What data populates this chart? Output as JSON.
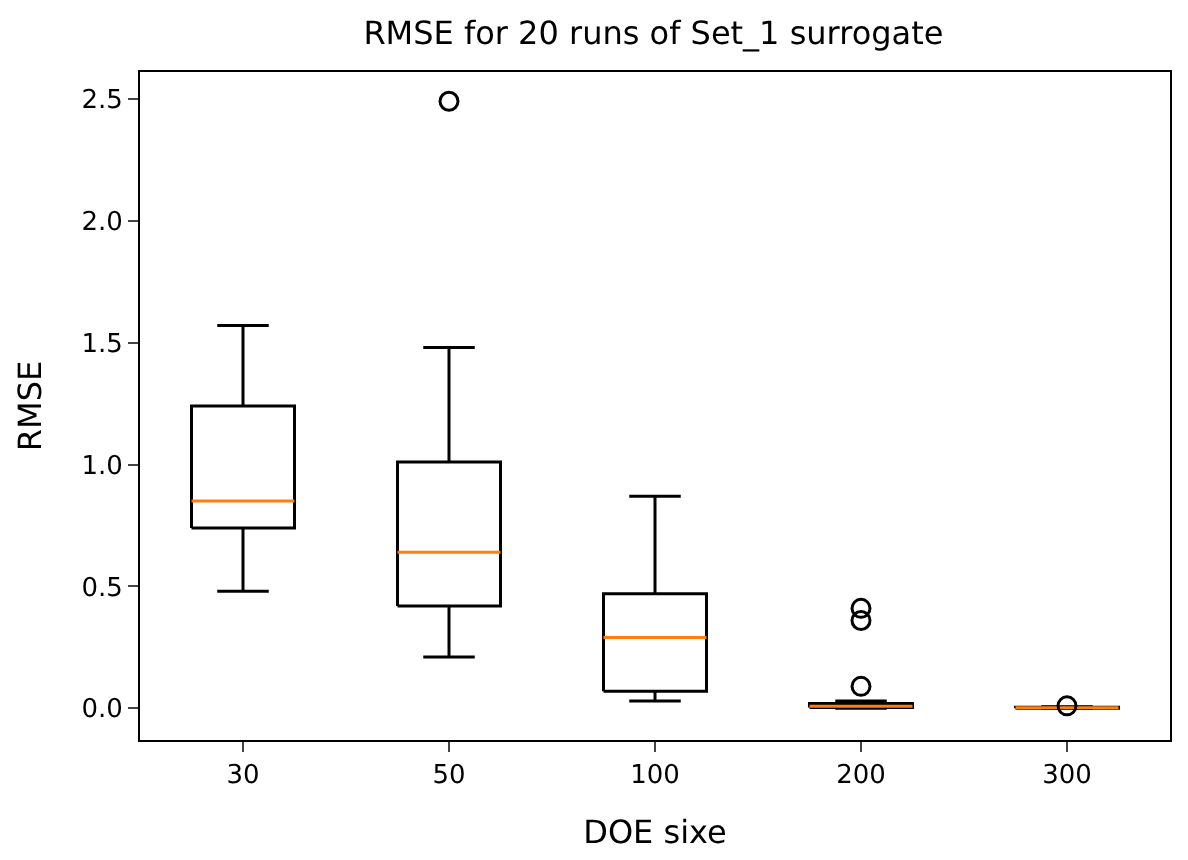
{
  "chart_data": {
    "type": "box",
    "title": "RMSE for 20 runs of Set_1 surrogate",
    "xlabel": "DOE sixe",
    "ylabel": "RMSE",
    "categories": [
      "30",
      "50",
      "100",
      "200",
      "300"
    ],
    "boxes": [
      {
        "low": 0.48,
        "q1": 0.74,
        "median": 0.85,
        "q3": 1.24,
        "high": 1.57
      },
      {
        "low": 0.21,
        "q1": 0.42,
        "median": 0.64,
        "q3": 1.01,
        "high": 1.48,
        "outliers": [
          2.49
        ]
      },
      {
        "low": 0.03,
        "q1": 0.07,
        "median": 0.29,
        "q3": 0.47,
        "high": 0.87
      },
      {
        "low": 0.0,
        "q1": 0.003,
        "median": 0.008,
        "q3": 0.02,
        "high": 0.03,
        "outliers": [
          0.41,
          0.36,
          0.09
        ]
      },
      {
        "low": 0.0,
        "q1": 0.0,
        "median": 0.002,
        "q3": 0.004,
        "high": 0.006,
        "outliers": [
          0.01
        ]
      }
    ],
    "color": "#000000",
    "ylim": [
      -0.13,
      2.61
    ],
    "yticks": [
      {
        "value": 0,
        "label": "0.0"
      },
      {
        "value": 0.5,
        "label": "0.5"
      },
      {
        "value": 1,
        "label": "1.0"
      },
      {
        "value": 1.5,
        "label": "1.5"
      },
      {
        "value": 2,
        "label": "2.0"
      },
      {
        "value": 2.5,
        "label": "2.5"
      }
    ]
  }
}
